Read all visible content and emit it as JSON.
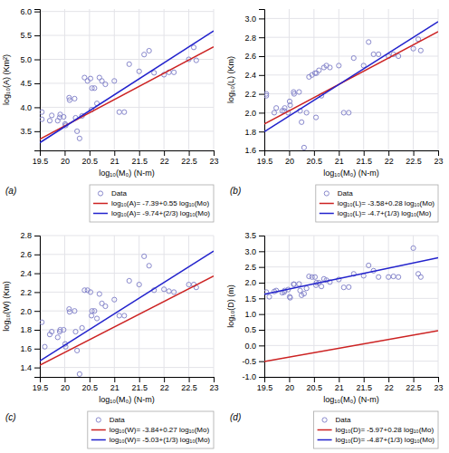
{
  "chart_data": [
    {
      "type": "scatter",
      "x_label": "log₁₀(M₀) (N-m)",
      "y_label": "log₁₀(A) (Km²)",
      "annotations": [
        "(a)"
      ],
      "xlim": [
        19.5,
        23.0
      ],
      "xticks": [
        19.5,
        20,
        20.5,
        21,
        21.5,
        22,
        22.5,
        23
      ],
      "ylim": [
        3.1,
        6.05
      ],
      "yticks": [
        3.5,
        {
          "value": 4,
          "label": "4.0"
        },
        4.5,
        {
          "value": 5,
          "label": "5.0"
        },
        5.5,
        {
          "value": 6,
          "label": "6.0"
        }
      ],
      "grid": true,
      "legend": "lower right",
      "series": [
        {
          "name": "Data",
          "type": "scatter",
          "marker": "circle",
          "color": "#8888cc",
          "x": [
            19.54,
            19.54,
            19.7,
            19.74,
            19.86,
            19.9,
            19.91,
            19.98,
            20.01,
            20.02,
            20.09,
            20.1,
            20.2,
            20.22,
            20.25,
            20.3,
            20.35,
            20.4,
            20.46,
            20.52,
            20.54,
            20.55,
            20.6,
            20.65,
            20.7,
            20.75,
            20.82,
            21.0,
            21.1,
            21.2,
            21.3,
            21.5,
            21.6,
            21.7,
            21.8,
            22.0,
            22.1,
            22.2,
            22.5,
            22.6,
            22.65
          ],
          "values": [
            3.9,
            3.75,
            3.72,
            3.83,
            3.72,
            3.79,
            3.85,
            3.8,
            3.65,
            3.62,
            4.2,
            4.15,
            4.18,
            3.78,
            3.5,
            3.35,
            3.82,
            4.62,
            4.55,
            4.6,
            3.95,
            4.4,
            4.4,
            4.08,
            4.62,
            4.55,
            4.48,
            4.55,
            3.9,
            3.9,
            4.9,
            4.75,
            5.1,
            5.18,
            4.72,
            4.68,
            4.73,
            4.73,
            5.0,
            5.25,
            4.98
          ]
        },
        {
          "name": "log₁₀(A)= -7.39+0.55 log₁₀(Mo)",
          "type": "line",
          "color": "#cc2222",
          "x": [
            19.5,
            23.0
          ],
          "values": [
            3.335,
            5.26
          ]
        },
        {
          "name": "log₁₀(A)= -9.74+(2/3) log₁₀(Mo)",
          "type": "line",
          "color": "#2222cc",
          "x": [
            19.5,
            23.0
          ],
          "values": [
            3.26065,
            5.5941
          ]
        }
      ]
    },
    {
      "type": "scatter",
      "x_label": "log₁₀(M₀) (N-m)",
      "y_label": "log₁₀(L) (Km)",
      "annotations": [
        "(b)"
      ],
      "xlim": [
        19.5,
        23.0
      ],
      "xticks": [
        19.5,
        20,
        20.5,
        21,
        21.5,
        22,
        22.5,
        23
      ],
      "ylim": [
        1.6,
        3.1
      ],
      "yticks": [
        1.6,
        1.8,
        {
          "value": 2,
          "label": "2.0"
        },
        2.2,
        2.4,
        2.6,
        2.8,
        {
          "value": 3,
          "label": "3.0"
        }
      ],
      "grid": true,
      "legend": "lower right",
      "series": [
        {
          "name": "Data",
          "type": "scatter",
          "marker": "circle",
          "color": "#8888cc",
          "x": [
            19.54,
            19.54,
            19.7,
            19.74,
            19.86,
            19.9,
            19.91,
            19.98,
            20.01,
            20.02,
            20.09,
            20.1,
            20.2,
            20.22,
            20.25,
            20.3,
            20.35,
            20.4,
            20.46,
            20.52,
            20.54,
            20.55,
            20.6,
            20.65,
            20.7,
            20.75,
            20.82,
            21.0,
            21.1,
            21.2,
            21.3,
            21.5,
            21.6,
            21.7,
            21.8,
            22.0,
            22.1,
            22.2,
            22.5,
            22.6,
            22.65
          ],
          "values": [
            2.2,
            2.18,
            2.0,
            2.05,
            2.02,
            2.02,
            2.05,
            2.0,
            2.12,
            2.08,
            2.22,
            2.2,
            2.22,
            2.02,
            1.9,
            1.63,
            2.0,
            2.38,
            2.4,
            2.42,
            1.95,
            2.42,
            2.45,
            2.18,
            2.48,
            2.5,
            2.48,
            2.5,
            2.0,
            2.0,
            2.58,
            2.5,
            2.75,
            2.62,
            2.62,
            2.6,
            2.62,
            2.6,
            2.68,
            2.78,
            2.66
          ]
        },
        {
          "name": "log₁₀(L)= -3.58+0.28 log₁₀(Mo)",
          "type": "line",
          "color": "#cc2222",
          "x": [
            19.5,
            23.0
          ],
          "values": [
            1.88,
            2.86
          ]
        },
        {
          "name": "log₁₀(L)= -4.7+(1/3) log₁₀(Mo)",
          "type": "line",
          "color": "#2222cc",
          "x": [
            19.5,
            23.0
          ],
          "values": [
            1.79935,
            2.9659
          ]
        }
      ]
    },
    {
      "type": "scatter",
      "x_label": "log₁₀(M₀) (N-m)",
      "y_label": "log₁₀(W) (Km)",
      "annotations": [
        "(c)"
      ],
      "xlim": [
        19.5,
        23.0
      ],
      "xticks": [
        19.5,
        20,
        20.5,
        21,
        21.5,
        22,
        22.5,
        23
      ],
      "ylim": [
        1.3,
        2.8
      ],
      "yticks": [
        1.4,
        1.6,
        1.8,
        {
          "value": 2,
          "label": "2.0"
        },
        2.2,
        2.4,
        2.6,
        2.8
      ],
      "grid": true,
      "legend": "lower right",
      "series": [
        {
          "name": "Data",
          "type": "scatter",
          "marker": "circle",
          "color": "#8888cc",
          "x": [
            19.54,
            19.6,
            19.7,
            19.74,
            19.86,
            19.9,
            19.91,
            19.98,
            20.01,
            20.02,
            20.09,
            20.1,
            20.2,
            20.22,
            20.25,
            20.3,
            20.35,
            20.4,
            20.46,
            20.52,
            20.54,
            20.55,
            20.6,
            20.65,
            20.7,
            20.75,
            20.82,
            21.0,
            21.1,
            21.2,
            21.3,
            21.5,
            21.6,
            21.7,
            21.8,
            22.0,
            22.1,
            22.2,
            22.5,
            22.6,
            22.65
          ],
          "values": [
            1.88,
            1.62,
            1.75,
            1.78,
            1.72,
            1.78,
            1.8,
            1.8,
            1.65,
            1.62,
            2.02,
            1.99,
            2.0,
            1.78,
            1.58,
            1.33,
            1.82,
            2.22,
            2.22,
            2.2,
            1.95,
            2.0,
            2.0,
            1.92,
            2.18,
            2.08,
            2.05,
            2.12,
            1.95,
            1.95,
            2.32,
            2.28,
            2.58,
            2.48,
            2.22,
            2.23,
            2.21,
            2.2,
            2.28,
            2.28,
            2.25
          ]
        },
        {
          "name": "log₁₀(W)= -3.84+0.27 log₁₀(Mo)",
          "type": "line",
          "color": "#cc2222",
          "x": [
            19.5,
            23.0
          ],
          "values": [
            1.425,
            2.37
          ]
        },
        {
          "name": "log₁₀(W)= -5.03+(1/3) log₁₀(Mo)",
          "type": "line",
          "color": "#2222cc",
          "x": [
            19.5,
            23.0
          ],
          "values": [
            1.46935,
            2.6359
          ]
        }
      ]
    },
    {
      "type": "scatter",
      "x_label": "log₁₀(M₀) (N-m)",
      "y_label": "log₁₀(D) (m)",
      "annotations": [
        "(d)"
      ],
      "xlim": [
        19.5,
        23.0
      ],
      "xticks": [
        19.5,
        20,
        20.5,
        21,
        21.5,
        22,
        22.5,
        23
      ],
      "ylim": [
        -1.0,
        3.5
      ],
      "yticks": [
        {
          "value": -1,
          "label": "-1.0"
        },
        -0.5,
        {
          "value": 0,
          "label": "0.0"
        },
        0.5,
        {
          "value": 1,
          "label": "1.0"
        },
        1.5,
        {
          "value": 2,
          "label": "2.0"
        },
        2.5,
        {
          "value": 3,
          "label": "3.0"
        },
        3.5
      ],
      "grid": true,
      "legend": "lower right",
      "series": [
        {
          "name": "Data",
          "type": "scatter",
          "marker": "circle",
          "color": "#8888cc",
          "x": [
            19.54,
            19.6,
            19.7,
            19.74,
            19.86,
            19.9,
            19.91,
            19.98,
            20.01,
            20.02,
            20.09,
            20.1,
            20.2,
            20.22,
            20.25,
            20.3,
            20.35,
            20.4,
            20.46,
            20.52,
            20.54,
            20.55,
            20.6,
            20.65,
            20.7,
            20.75,
            20.82,
            21.0,
            21.1,
            21.2,
            21.3,
            21.5,
            21.6,
            21.7,
            21.8,
            22.0,
            22.1,
            22.2,
            22.5,
            22.6,
            22.65
          ],
          "values": [
            1.7,
            1.55,
            1.72,
            1.75,
            1.68,
            1.7,
            1.75,
            1.78,
            1.55,
            1.52,
            1.95,
            1.95,
            1.96,
            1.75,
            1.6,
            1.65,
            1.82,
            2.2,
            2.18,
            2.18,
            1.92,
            2.0,
            2.0,
            1.88,
            2.12,
            2.08,
            2.02,
            2.1,
            1.85,
            1.86,
            2.28,
            2.22,
            2.55,
            2.38,
            2.18,
            2.18,
            2.2,
            2.18,
            3.1,
            2.28,
            2.18
          ]
        },
        {
          "name": "log₁₀(D)= -5.97+0.28 log₁₀(Mo)",
          "type": "line",
          "color": "#cc2222",
          "x": [
            19.5,
            23.0
          ],
          "values": [
            -0.51,
            0.47
          ]
        },
        {
          "name": "log₁₀(D)= -4.87+(1/3) log₁₀(Mo)",
          "type": "line",
          "color": "#2222cc",
          "x": [
            19.5,
            23.0
          ],
          "values": [
            1.62935,
            2.7959
          ]
        }
      ]
    }
  ]
}
